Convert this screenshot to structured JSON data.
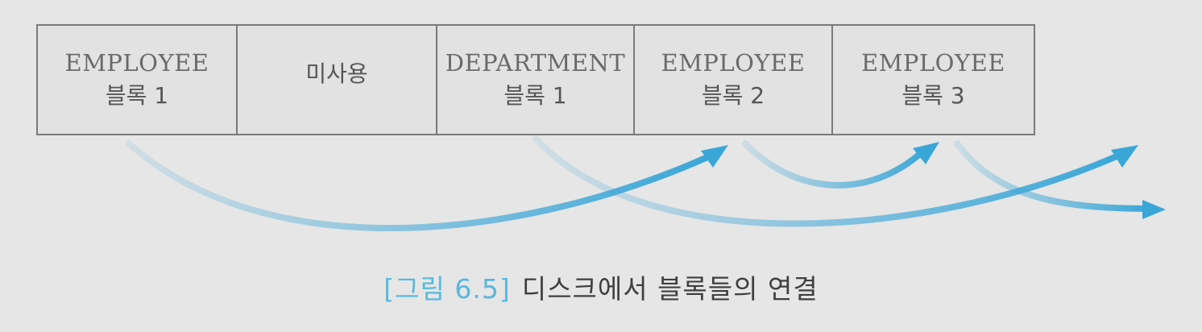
{
  "blocks": [
    {
      "name": "EMPLOYEE",
      "label": "블록 1"
    },
    {
      "text": "미사용"
    },
    {
      "name": "DEPARTMENT",
      "label": "블록 1"
    },
    {
      "name": "EMPLOYEE",
      "label": "블록 2"
    },
    {
      "name": "EMPLOYEE",
      "label": "블록 3"
    }
  ],
  "links": [
    {
      "from": "EMPLOYEE 블록 1",
      "to": "EMPLOYEE 블록 2"
    },
    {
      "from": "DEPARTMENT 블록 1",
      "to": "next"
    },
    {
      "from": "EMPLOYEE 블록 2",
      "to": "EMPLOYEE 블록 3"
    },
    {
      "from": "EMPLOYEE 블록 3",
      "to": "next"
    }
  ],
  "caption": {
    "number": "[그림 6.5]",
    "text": "디스크에서 블록들의 연결"
  },
  "colors": {
    "arrow": "#3aa6d8",
    "caption_number": "#57b9dd"
  }
}
